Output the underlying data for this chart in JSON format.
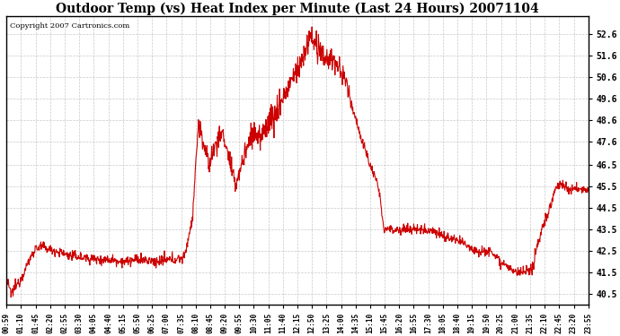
{
  "title": "Outdoor Temp (vs) Heat Index per Minute (Last 24 Hours) 20071104",
  "copyright": "Copyright 2007 Cartronics.com",
  "line_color": "#cc0000",
  "background_color": "#ffffff",
  "grid_color": "#bbbbbb",
  "yticks": [
    40.5,
    41.5,
    42.5,
    43.5,
    44.5,
    45.5,
    46.5,
    47.6,
    48.6,
    49.6,
    50.6,
    51.6,
    52.6
  ],
  "ylim": [
    40.0,
    53.4
  ],
  "xtick_labels": [
    "00:59",
    "01:10",
    "01:45",
    "02:20",
    "02:55",
    "03:30",
    "04:05",
    "04:40",
    "05:15",
    "05:50",
    "06:25",
    "07:00",
    "07:35",
    "08:10",
    "08:45",
    "09:20",
    "09:55",
    "10:30",
    "11:05",
    "11:40",
    "12:15",
    "12:50",
    "13:25",
    "14:00",
    "14:35",
    "15:10",
    "15:45",
    "16:20",
    "16:55",
    "17:30",
    "18:05",
    "18:40",
    "19:15",
    "19:50",
    "20:25",
    "21:00",
    "21:35",
    "22:10",
    "22:45",
    "23:20",
    "23:55"
  ],
  "seed": 12345
}
